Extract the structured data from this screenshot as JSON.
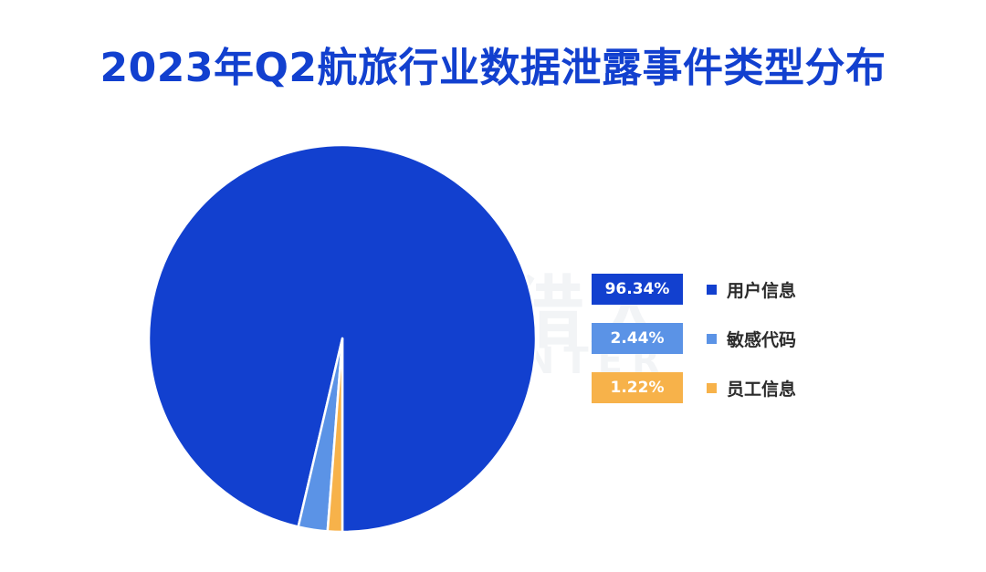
{
  "title": "2023年Q2航旅行业数据泄露事件类型分布",
  "watermark": {
    "cn": "威胁猎人",
    "en": "THREAT HUNTER"
  },
  "chart_data": {
    "type": "pie",
    "categories": [
      "用户信息",
      "敏感代码",
      "员工信息"
    ],
    "values": [
      96.34,
      2.44,
      1.22
    ],
    "value_labels": [
      "96.34%",
      "2.44%",
      "1.22%"
    ],
    "colors": [
      "#1240cf",
      "#5b93e6",
      "#f7b24a"
    ],
    "start_angle_deg": 180,
    "direction": "counterclockwise",
    "legend_placement": "right"
  }
}
